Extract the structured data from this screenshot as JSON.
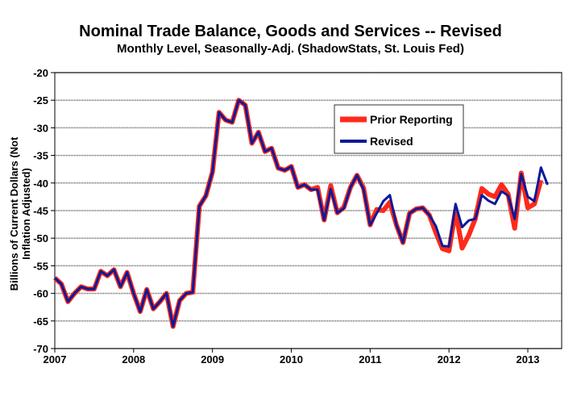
{
  "chart_data": {
    "type": "line",
    "title": "Nominal Trade Balance, Goods and Services -- Revised",
    "subtitle": "Monthly Level, Seasonally-Adj. (ShadowStats, St. Louis Fed)",
    "xlabel": "",
    "ylabel": "Billions of Current Dollars (Not Inflation Adjusted)",
    "ylim": [
      -70,
      -20
    ],
    "yticks": [
      "-20",
      "-25",
      "-30",
      "-35",
      "-40",
      "-45",
      "-50",
      "-55",
      "-60",
      "-65",
      "-70"
    ],
    "xticks": [
      "2007",
      "2008",
      "2009",
      "2010",
      "2011",
      "2012",
      "2013"
    ],
    "start": "2007-01",
    "frequency": "monthly",
    "grid": true,
    "legend_position": "top-right",
    "series": [
      {
        "name": "Prior Reporting",
        "color": "#ff2a1a",
        "values": [
          -57.2,
          -58.3,
          -61.5,
          -60,
          -58.8,
          -59.2,
          -59.2,
          -56,
          -56.8,
          -55.7,
          -58.8,
          -56.2,
          -60,
          -63.3,
          -59.3,
          -62.8,
          -61.5,
          -60,
          -66,
          -61.3,
          -60,
          -59.8,
          -44.2,
          -42.3,
          -38,
          -27.2,
          -28.6,
          -29,
          -25,
          -25.9,
          -32.8,
          -30.8,
          -34.3,
          -33.7,
          -37.3,
          -37.7,
          -37,
          -40.8,
          -40.3,
          -41.2,
          -40.8,
          -46.7,
          -40.5,
          -45.4,
          -44.4,
          -40.8,
          -38.6,
          -40.9,
          -47.6,
          -44.8,
          -45,
          -43.5,
          -47.6,
          -50.8,
          -45.5,
          -44.7,
          -44.5,
          -45.8,
          -49,
          -51.9,
          -52.3,
          -45,
          -51.8,
          -49.5,
          -46.5,
          -41,
          -42,
          -42.5,
          -40.3,
          -42,
          -48.2,
          -38.2,
          -44.5,
          -43.8,
          -39.5
        ]
      },
      {
        "name": "Revised",
        "color": "#0a1a9a",
        "values": [
          -57.2,
          -58.3,
          -61.5,
          -60,
          -58.8,
          -59.2,
          -59.2,
          -56,
          -56.8,
          -55.7,
          -58.8,
          -56.2,
          -60,
          -63.3,
          -59.3,
          -62.8,
          -61.5,
          -60,
          -66,
          -61.3,
          -60,
          -59.8,
          -44.2,
          -42.3,
          -38,
          -27.2,
          -28.6,
          -29,
          -25,
          -25.9,
          -32.8,
          -30.8,
          -34.3,
          -33.7,
          -37.3,
          -37.7,
          -37,
          -40.8,
          -40.3,
          -41.2,
          -41.2,
          -46.7,
          -41.1,
          -45.4,
          -44.6,
          -40.8,
          -38.6,
          -41.2,
          -47.6,
          -45.5,
          -43.3,
          -42.2,
          -47.6,
          -50.8,
          -45.5,
          -44.7,
          -44.5,
          -45.8,
          -47.8,
          -51.4,
          -51.5,
          -43.8,
          -48,
          -46.8,
          -46.5,
          -42.2,
          -43.2,
          -43.8,
          -41.5,
          -42.3,
          -46.5,
          -38.4,
          -42.5,
          -43.3,
          -37.2,
          -40.3
        ]
      }
    ]
  }
}
